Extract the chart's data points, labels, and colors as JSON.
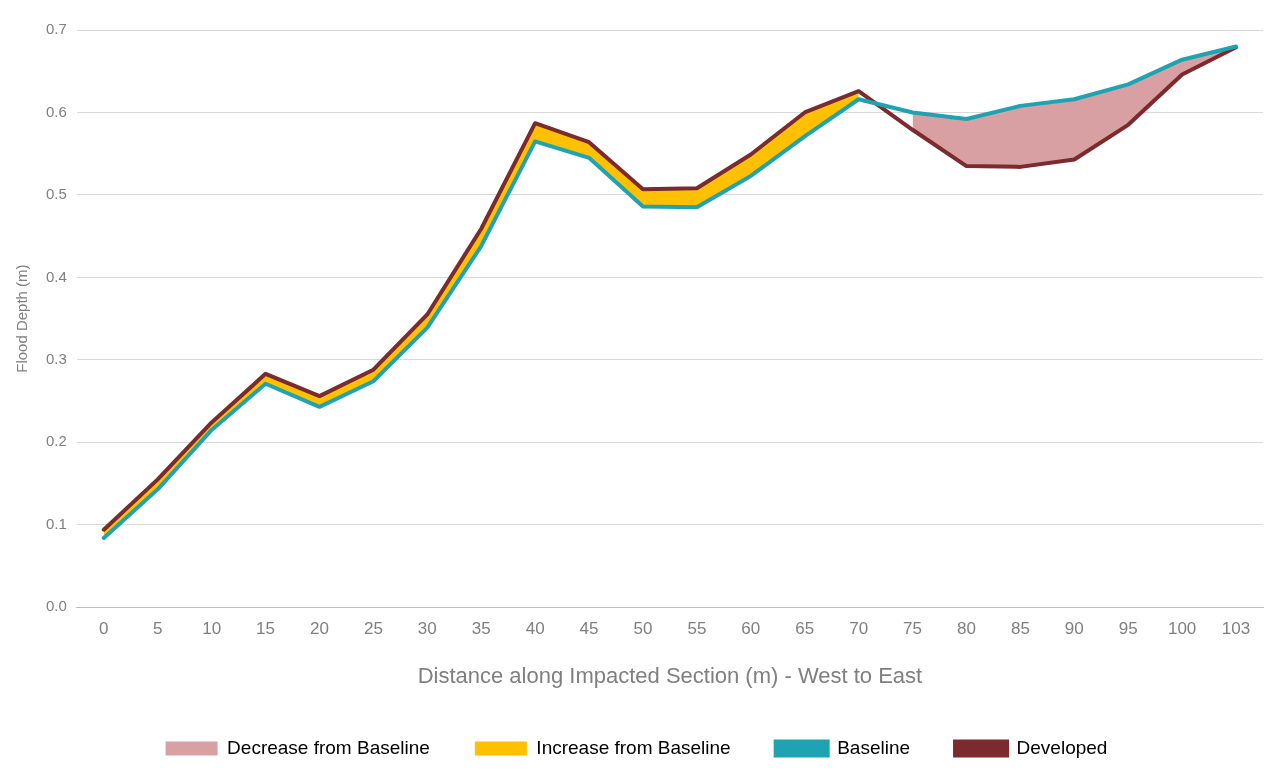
{
  "chart_data": {
    "type": "line",
    "xlabel": "Distance along Impacted Section (m) - West to East",
    "ylabel": "Flood Depth (m)",
    "categories": [
      "0",
      "5",
      "10",
      "15",
      "20",
      "25",
      "30",
      "35",
      "40",
      "45",
      "50",
      "55",
      "60",
      "65",
      "70",
      "75",
      "80",
      "85",
      "90",
      "95",
      "100",
      "103"
    ],
    "series": [
      {
        "name": "Decrease from Baseline",
        "type": "area",
        "color": "#d9a0a3",
        "values": [
          null,
          null,
          null,
          null,
          null,
          null,
          null,
          null,
          null,
          null,
          null,
          null,
          null,
          null,
          null,
          0.6,
          0.592,
          0.608,
          0.616,
          0.634,
          0.664,
          0.68
        ]
      },
      {
        "name": "Increase from Baseline",
        "type": "area",
        "color": "#ffc000",
        "values": [
          0.094,
          0.155,
          0.224,
          0.283,
          0.256,
          0.288,
          0.355,
          0.459,
          0.587,
          0.564,
          0.507,
          0.508,
          0.549,
          0.6,
          0.626,
          null,
          null,
          null,
          null,
          null,
          null,
          null
        ]
      },
      {
        "name": "Baseline",
        "color": "#1fa3b3",
        "values": [
          0.084,
          0.143,
          0.215,
          0.271,
          0.243,
          0.274,
          0.339,
          0.438,
          0.565,
          0.545,
          0.486,
          0.485,
          0.523,
          0.571,
          0.616,
          0.6,
          0.592,
          0.608,
          0.616,
          0.634,
          0.664,
          0.68
        ]
      },
      {
        "name": "Developed",
        "color": "#7b2a2e",
        "values": [
          0.094,
          0.155,
          0.224,
          0.283,
          0.256,
          0.288,
          0.355,
          0.459,
          0.587,
          0.564,
          0.507,
          0.508,
          0.549,
          0.6,
          0.626,
          0.579,
          0.535,
          0.534,
          0.543,
          0.585,
          0.646,
          0.679
        ]
      }
    ],
    "ylim": [
      0,
      0.7
    ],
    "yticks": [
      {
        "value": 0,
        "label": "0.0"
      },
      0.1,
      0.2,
      0.3,
      0.4,
      0.5,
      0.6,
      0.7
    ],
    "grid": "y",
    "legend": "bottom",
    "marker": "none",
    "line_style": "solid"
  }
}
